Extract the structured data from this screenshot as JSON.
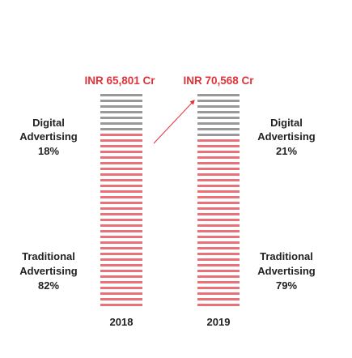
{
  "chart_data": {
    "type": "bar",
    "subtype": "stacked-percent-striped",
    "categories": [
      "2018",
      "2019"
    ],
    "totals": [
      "INR 65,801 Cr",
      "INR 70,568 Cr"
    ],
    "series": [
      {
        "name": "Digital Advertising",
        "label_lines": [
          "Digital",
          "Advertising"
        ],
        "values": [
          18,
          21
        ],
        "value_labels": [
          "18%",
          "21%"
        ],
        "color": "#999999"
      },
      {
        "name": "Traditional Advertising",
        "label_lines": [
          "Traditional",
          "Advertising"
        ],
        "values": [
          82,
          79
        ],
        "value_labels": [
          "82%",
          "79%"
        ],
        "color": "#e8717a"
      }
    ],
    "grid": false,
    "legend": "none",
    "growth_arrow": true
  }
}
